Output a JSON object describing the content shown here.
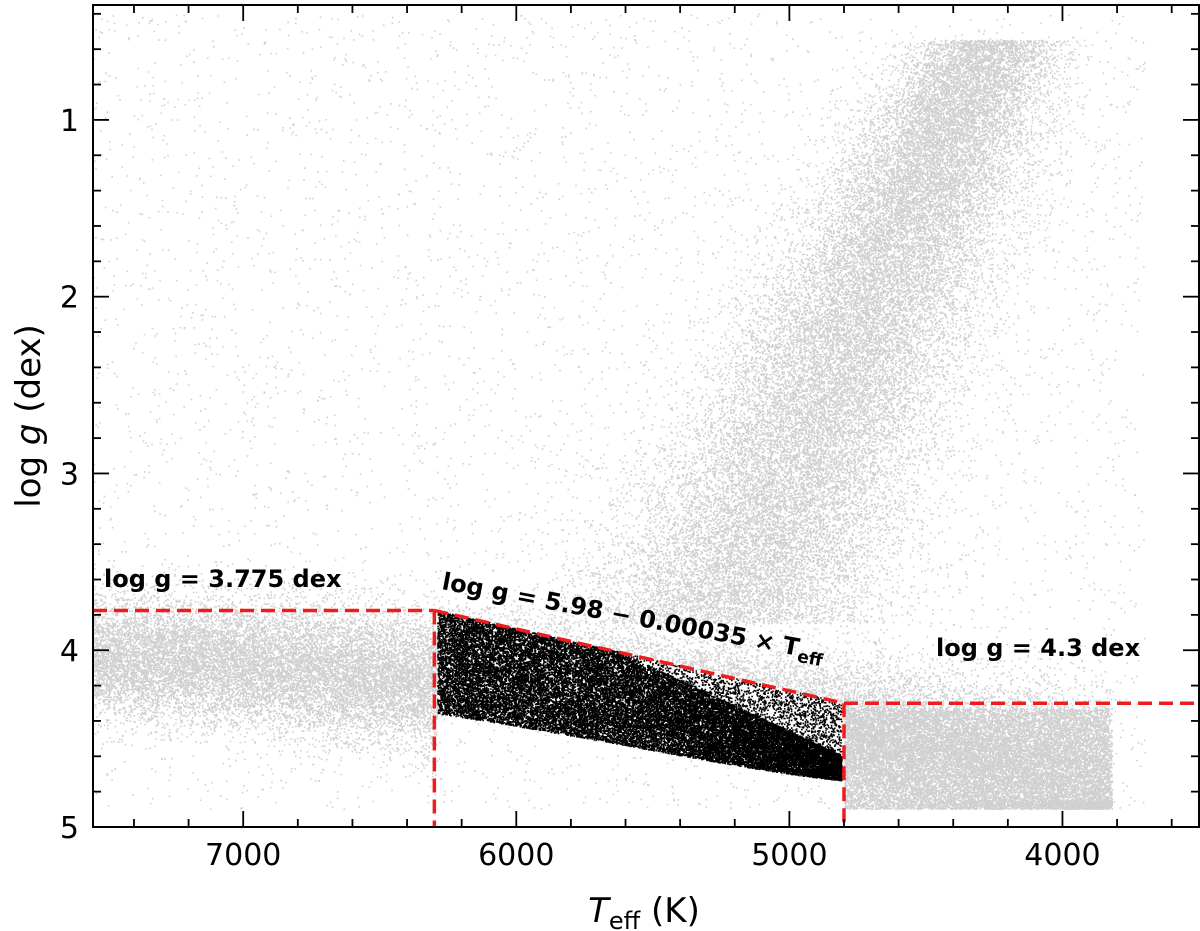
{
  "chart_data": {
    "type": "scatter",
    "title": "",
    "xlabel": {
      "main": "T",
      "sub": "eff",
      "unit": " (K)"
    },
    "ylabel": {
      "pre": "log ",
      "italic": "g",
      "unit": " (dex)"
    },
    "xlim": [
      7550,
      3500
    ],
    "ylim": [
      5.0,
      0.35
    ],
    "x_inverted": true,
    "y_inverted": true,
    "x_ticks": [
      7000,
      6000,
      5000,
      4000
    ],
    "x_tick_labels": [
      "7000",
      "6000",
      "5000",
      "4000"
    ],
    "x_minor_step": 200,
    "y_ticks": [
      1,
      2,
      3,
      4,
      5
    ],
    "y_tick_labels": [
      "1",
      "2",
      "3",
      "4",
      "5"
    ],
    "y_minor_step": 0.2,
    "series": [
      {
        "role": "all stars",
        "color": "#d0d0d0"
      },
      {
        "role": "selected dwarfs",
        "color": "#000000"
      }
    ],
    "cut_lines": {
      "color": "#ee1c1c",
      "dash": "dashed",
      "segments": [
        {
          "x": [
            7550,
            6300
          ],
          "y": [
            3.775,
            3.775
          ]
        },
        {
          "x": [
            6300,
            6300
          ],
          "y": [
            3.775,
            5.0
          ]
        },
        {
          "x": [
            6300,
            4800
          ],
          "y": [
            3.775,
            4.3
          ]
        },
        {
          "x": [
            4800,
            4800
          ],
          "y": [
            4.3,
            5.0
          ]
        },
        {
          "x": [
            4800,
            3500
          ],
          "y": [
            4.3,
            4.3
          ]
        }
      ]
    },
    "annotations": [
      {
        "id": "left",
        "text": "log g = 3.775 dex"
      },
      {
        "id": "mid_pre",
        "text": "log g = 5.98 − 0.00035 × T"
      },
      {
        "id": "mid_sub",
        "text": "eff"
      },
      {
        "id": "right",
        "text": "log g = 4.3 dex"
      }
    ]
  }
}
